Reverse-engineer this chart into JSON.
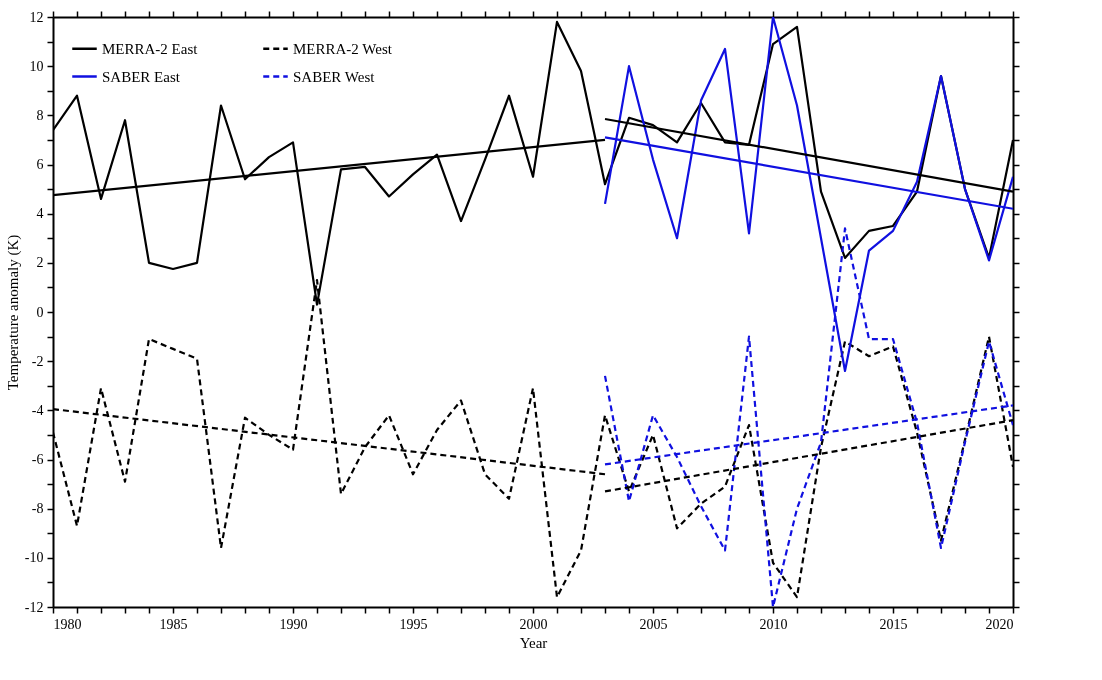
{
  "chart_data": {
    "type": "line",
    "xlabel": "Year",
    "ylabel": "Temperature anomaly (K)",
    "xlim": [
      1980,
      2020
    ],
    "ylim": [
      -12,
      12
    ],
    "xticks": [
      1980,
      {
        "value": 1981,
        "label": null
      },
      {
        "value": 1982,
        "label": null
      },
      {
        "value": 1983,
        "label": null
      },
      {
        "value": 1984,
        "label": null
      },
      1985,
      {
        "value": 1986,
        "label": null
      },
      {
        "value": 1987,
        "label": null
      },
      {
        "value": 1988,
        "label": null
      },
      {
        "value": 1989,
        "label": null
      },
      1990,
      {
        "value": 1991,
        "label": null
      },
      {
        "value": 1992,
        "label": null
      },
      {
        "value": 1993,
        "label": null
      },
      {
        "value": 1994,
        "label": null
      },
      1995,
      {
        "value": 1996,
        "label": null
      },
      {
        "value": 1997,
        "label": null
      },
      {
        "value": 1998,
        "label": null
      },
      {
        "value": 1999,
        "label": null
      },
      2000,
      {
        "value": 2001,
        "label": null
      },
      {
        "value": 2002,
        "label": null
      },
      {
        "value": 2003,
        "label": null
      },
      {
        "value": 2004,
        "label": null
      },
      2005,
      {
        "value": 2006,
        "label": null
      },
      {
        "value": 2007,
        "label": null
      },
      {
        "value": 2008,
        "label": null
      },
      {
        "value": 2009,
        "label": null
      },
      2010,
      {
        "value": 2011,
        "label": null
      },
      {
        "value": 2012,
        "label": null
      },
      {
        "value": 2013,
        "label": null
      },
      {
        "value": 2014,
        "label": null
      },
      2015,
      {
        "value": 2016,
        "label": null
      },
      {
        "value": 2017,
        "label": null
      },
      {
        "value": 2018,
        "label": null
      },
      {
        "value": 2019,
        "label": null
      },
      2020
    ],
    "yticks": [
      -12,
      {
        "value": -11,
        "label": null
      },
      -10,
      {
        "value": -9,
        "label": null
      },
      -8,
      {
        "value": -7,
        "label": null
      },
      -6,
      {
        "value": -5,
        "label": null
      },
      -4,
      {
        "value": -3,
        "label": null
      },
      -2,
      {
        "value": -1,
        "label": null
      },
      0,
      {
        "value": 1,
        "label": null
      },
      2,
      {
        "value": 3,
        "label": null
      },
      4,
      {
        "value": 5,
        "label": null
      },
      6,
      {
        "value": 7,
        "label": null
      },
      8,
      {
        "value": 9,
        "label": null
      },
      10,
      {
        "value": 11,
        "label": null
      },
      12
    ],
    "grid": false,
    "legend": "top left",
    "marker": "none",
    "series": [
      {
        "name": "MERRA-2 East",
        "color": "#000000",
        "line_style": "solid",
        "x": [
          1980,
          1981,
          1982,
          1983,
          1984,
          1985,
          1986,
          1987,
          1988,
          1989,
          1990,
          1991,
          1992,
          1993,
          1994,
          1995,
          1996,
          1997,
          1998,
          1999,
          2000,
          2001,
          2002,
          2003,
          2004,
          2005,
          2006,
          2007,
          2008,
          2009,
          2010,
          2011,
          2012,
          2013,
          2014,
          2015,
          2016,
          2017,
          2018,
          2019,
          2020
        ],
        "values": [
          7.4,
          8.8,
          4.6,
          7.8,
          2.0,
          1.75,
          2.0,
          8.4,
          5.4,
          6.3,
          6.9,
          0.3,
          5.8,
          5.9,
          4.7,
          5.6,
          6.4,
          3.7,
          6.2,
          8.8,
          5.5,
          11.8,
          9.8,
          5.2,
          7.9,
          7.6,
          6.9,
          8.5,
          6.9,
          6.8,
          10.9,
          11.6,
          4.9,
          2.2,
          3.3,
          3.5,
          4.9,
          9.6,
          5.0,
          2.2,
          7.0
        ]
      },
      {
        "name": "MERRA-2 West",
        "color": "#000000",
        "line_style": "dashed",
        "x": [
          1980,
          1981,
          1982,
          1983,
          1984,
          1985,
          1986,
          1987,
          1988,
          1989,
          1990,
          1991,
          1992,
          1993,
          1994,
          1995,
          1996,
          1997,
          1998,
          1999,
          2000,
          2001,
          2002,
          2003,
          2004,
          2005,
          2006,
          2007,
          2008,
          2009,
          2010,
          2011,
          2012,
          2013,
          2014,
          2015,
          2016,
          2017,
          2018,
          2019,
          2020
        ],
        "values": [
          -4.9,
          -8.7,
          -3.1,
          -6.9,
          -1.1,
          -1.5,
          -1.9,
          -9.6,
          -4.3,
          -5.0,
          -5.6,
          1.3,
          -7.4,
          -5.5,
          -4.2,
          -6.6,
          -4.8,
          -3.6,
          -6.6,
          -7.6,
          -3.1,
          -11.6,
          -9.7,
          -4.2,
          -7.3,
          -5.0,
          -8.8,
          -7.8,
          -7.1,
          -4.6,
          -10.2,
          -11.6,
          -5.5,
          -1.2,
          -1.8,
          -1.4,
          -4.9,
          -9.3,
          -5.2,
          -1.0,
          -6.3
        ]
      },
      {
        "name": "SABER East",
        "color": "#1010e0",
        "line_style": "solid",
        "x": [
          2003,
          2004,
          2005,
          2006,
          2007,
          2008,
          2009,
          2010,
          2011,
          2012,
          2013,
          2014,
          2015,
          2016,
          2017,
          2018,
          2019,
          2020
        ],
        "values": [
          4.4,
          10.0,
          6.2,
          3.0,
          8.6,
          10.7,
          3.2,
          12.0,
          8.4,
          3.0,
          -2.4,
          2.5,
          3.3,
          5.3,
          9.6,
          5.0,
          2.1,
          5.5
        ]
      },
      {
        "name": "SABER West",
        "color": "#1010e0",
        "line_style": "dashed",
        "x": [
          2003,
          2004,
          2005,
          2006,
          2007,
          2008,
          2009,
          2010,
          2011,
          2012,
          2013,
          2014,
          2015,
          2016,
          2017,
          2018,
          2019,
          2020
        ],
        "values": [
          -2.6,
          -7.7,
          -4.2,
          -5.9,
          -7.9,
          -9.7,
          -1.0,
          -12.0,
          -8.0,
          -5.3,
          3.4,
          -1.1,
          -1.1,
          -4.5,
          -9.6,
          -5.3,
          -1.2,
          -4.6
        ]
      },
      {
        "color": "#000000",
        "line_style": "solid",
        "x": [
          1980,
          2003
        ],
        "values": [
          4.75,
          7.0
        ]
      },
      {
        "color": "#000000",
        "line_style": "solid",
        "x": [
          2003,
          2020
        ],
        "values": [
          7.85,
          4.9
        ]
      },
      {
        "color": "#1010e0",
        "line_style": "solid",
        "x": [
          2003,
          2020
        ],
        "values": [
          7.1,
          4.2
        ]
      },
      {
        "color": "#000000",
        "line_style": "dashed",
        "x": [
          1980,
          2003
        ],
        "values": [
          -3.95,
          -6.6
        ]
      },
      {
        "color": "#000000",
        "line_style": "dashed",
        "x": [
          2003,
          2020
        ],
        "values": [
          -7.3,
          -4.4
        ]
      },
      {
        "color": "#1010e0",
        "line_style": "dashed",
        "x": [
          2003,
          2020
        ],
        "values": [
          -6.2,
          -3.8
        ]
      }
    ]
  }
}
